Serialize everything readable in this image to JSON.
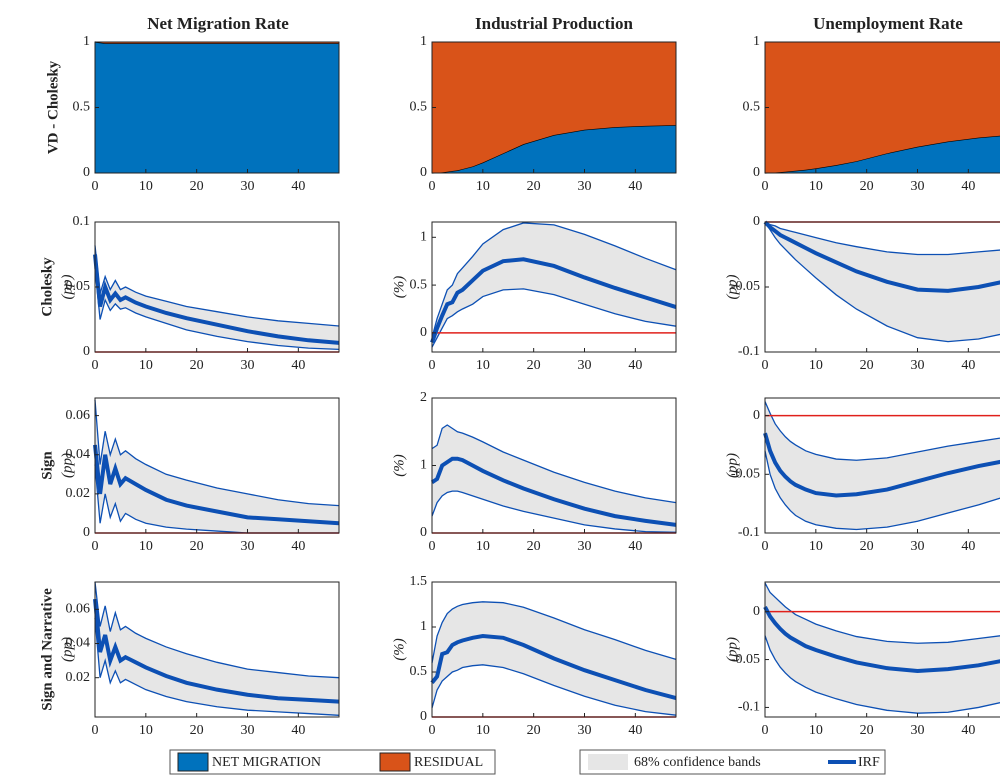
{
  "column_titles": [
    "Net Migration Rate",
    "Industrial Production",
    "Unemployment Rate"
  ],
  "row_labels": [
    {
      "title": "VD - Cholesky"
    },
    {
      "title": "Cholesky",
      "unit": "(pp)"
    },
    {
      "title": "Sign",
      "unit": "(pp)"
    },
    {
      "title": "Sign and Narrative",
      "unit": "(pp)"
    }
  ],
  "legend_vd": [
    {
      "name": "NET MIGRATION",
      "color": "#0072bd"
    },
    {
      "name": "RESIDUAL",
      "color": "#d95319"
    }
  ],
  "legend_irf": [
    {
      "name": "68% confidence bands",
      "color": "#e6e6e6"
    },
    {
      "name": "IRF",
      "color": "#0d50b4"
    }
  ],
  "chart_data": [
    {
      "type": "stacked_area",
      "x": [
        0,
        1,
        2,
        3,
        4,
        5,
        6,
        8,
        10,
        14,
        18,
        24,
        30,
        36,
        42,
        48
      ],
      "xlim": [
        0,
        48
      ],
      "xticks": [
        0,
        10,
        20,
        30,
        40
      ],
      "ylim": [
        0,
        1
      ],
      "yticks": [
        0,
        0.5,
        1
      ],
      "series": [
        {
          "color": "#0072bd",
          "values": [
            1,
            0.995,
            0.99,
            0.99,
            0.99,
            0.99,
            0.99,
            0.99,
            0.99,
            0.99,
            0.99,
            0.99,
            0.99,
            0.99,
            0.99,
            0.99
          ]
        },
        {
          "color": "#d95319",
          "values": [
            0,
            0.005,
            0.01,
            0.01,
            0.01,
            0.01,
            0.01,
            0.01,
            0.01,
            0.01,
            0.01,
            0.01,
            0.01,
            0.01,
            0.01,
            0.01
          ]
        }
      ]
    },
    {
      "type": "stacked_area",
      "x": [
        0,
        1,
        2,
        3,
        4,
        5,
        6,
        8,
        10,
        14,
        18,
        24,
        30,
        36,
        42,
        48
      ],
      "xlim": [
        0,
        48
      ],
      "xticks": [
        0,
        10,
        20,
        30,
        40
      ],
      "ylim": [
        0,
        1
      ],
      "yticks": [
        0,
        0.5,
        1
      ],
      "series": [
        {
          "color": "#0072bd",
          "values": [
            0,
            0.002,
            0.005,
            0.01,
            0.015,
            0.02,
            0.03,
            0.05,
            0.08,
            0.15,
            0.22,
            0.29,
            0.33,
            0.35,
            0.36,
            0.365
          ]
        },
        {
          "color": "#d95319",
          "values": [
            1,
            0.998,
            0.995,
            0.99,
            0.985,
            0.98,
            0.97,
            0.95,
            0.92,
            0.85,
            0.78,
            0.71,
            0.67,
            0.65,
            0.64,
            0.635
          ]
        }
      ]
    },
    {
      "type": "stacked_area",
      "x": [
        0,
        1,
        2,
        3,
        4,
        5,
        6,
        8,
        10,
        14,
        18,
        24,
        30,
        36,
        42,
        48
      ],
      "xlim": [
        0,
        48
      ],
      "xticks": [
        0,
        10,
        20,
        30,
        40
      ],
      "ylim": [
        0,
        1
      ],
      "yticks": [
        0,
        0.5,
        1
      ],
      "series": [
        {
          "color": "#0072bd",
          "values": [
            0,
            0.002,
            0.004,
            0.007,
            0.01,
            0.013,
            0.017,
            0.025,
            0.035,
            0.06,
            0.09,
            0.15,
            0.2,
            0.24,
            0.27,
            0.29
          ]
        },
        {
          "color": "#d95319",
          "values": [
            1,
            0.998,
            0.996,
            0.993,
            0.99,
            0.987,
            0.983,
            0.975,
            0.965,
            0.94,
            0.91,
            0.85,
            0.8,
            0.76,
            0.73,
            0.71
          ]
        }
      ]
    },
    {
      "type": "irf",
      "x": [
        0,
        1,
        2,
        3,
        4,
        5,
        6,
        8,
        10,
        14,
        18,
        24,
        30,
        36,
        42,
        48
      ],
      "xlim": [
        0,
        48
      ],
      "xticks": [
        0,
        10,
        20,
        30,
        40
      ],
      "ylim": [
        0,
        0.1
      ],
      "yticks": [
        0,
        0.05,
        0.1
      ],
      "band": {
        "color": "#e6e6e6",
        "lower": [
          0.065,
          0.025,
          0.04,
          0.032,
          0.037,
          0.033,
          0.034,
          0.03,
          0.027,
          0.022,
          0.017,
          0.012,
          0.008,
          0.005,
          0.003,
          0.002
        ],
        "upper": [
          0.082,
          0.045,
          0.058,
          0.048,
          0.055,
          0.048,
          0.05,
          0.046,
          0.043,
          0.039,
          0.035,
          0.031,
          0.027,
          0.024,
          0.022,
          0.02
        ]
      },
      "irf": {
        "color": "#0d50b4",
        "values": [
          0.075,
          0.035,
          0.05,
          0.04,
          0.045,
          0.04,
          0.042,
          0.038,
          0.035,
          0.03,
          0.026,
          0.021,
          0.016,
          0.012,
          0.009,
          0.007
        ]
      },
      "ref_line": {
        "value": 0,
        "color": "#e0201b"
      }
    },
    {
      "type": "irf",
      "ylabel": "(%)",
      "x": [
        0,
        1,
        2,
        3,
        4,
        5,
        6,
        8,
        10,
        14,
        18,
        24,
        30,
        36,
        42,
        48
      ],
      "xlim": [
        0,
        48
      ],
      "xticks": [
        0,
        10,
        20,
        30,
        40
      ],
      "ylim": [
        -0.2,
        1.16
      ],
      "yticks": [
        0,
        0.5,
        1
      ],
      "band": {
        "color": "#e6e6e6",
        "lower": [
          -0.15,
          -0.05,
          0.05,
          0.15,
          0.18,
          0.22,
          0.25,
          0.3,
          0.38,
          0.45,
          0.46,
          0.4,
          0.3,
          0.2,
          0.12,
          0.07
        ],
        "upper": [
          -0.05,
          0.15,
          0.3,
          0.45,
          0.5,
          0.62,
          0.68,
          0.8,
          0.93,
          1.08,
          1.15,
          1.13,
          1.03,
          0.91,
          0.78,
          0.66
        ]
      },
      "irf": {
        "color": "#0d50b4",
        "values": [
          -0.1,
          0.05,
          0.18,
          0.3,
          0.32,
          0.42,
          0.45,
          0.55,
          0.65,
          0.75,
          0.77,
          0.7,
          0.58,
          0.47,
          0.37,
          0.27
        ]
      },
      "ref_line": {
        "value": 0,
        "color": "#e0201b"
      }
    },
    {
      "type": "irf",
      "ylabel": "(pp)",
      "x": [
        0,
        1,
        2,
        3,
        4,
        5,
        6,
        8,
        10,
        14,
        18,
        24,
        30,
        36,
        42,
        48
      ],
      "xlim": [
        0,
        48
      ],
      "xticks": [
        0,
        10,
        20,
        30,
        40
      ],
      "ylim": [
        -0.1,
        0
      ],
      "yticks": [
        -0.1,
        -0.05,
        0
      ],
      "band": {
        "color": "#e6e6e6",
        "lower": [
          0,
          -0.006,
          -0.012,
          -0.017,
          -0.021,
          -0.025,
          -0.029,
          -0.036,
          -0.043,
          -0.056,
          -0.067,
          -0.08,
          -0.089,
          -0.092,
          -0.09,
          -0.085
        ],
        "upper": [
          0,
          -0.002,
          -0.003,
          -0.005,
          -0.006,
          -0.007,
          -0.008,
          -0.01,
          -0.012,
          -0.016,
          -0.019,
          -0.023,
          -0.025,
          -0.025,
          -0.023,
          -0.021
        ]
      },
      "irf": {
        "color": "#0d50b4",
        "values": [
          0,
          -0.004,
          -0.007,
          -0.01,
          -0.012,
          -0.014,
          -0.016,
          -0.02,
          -0.024,
          -0.031,
          -0.038,
          -0.046,
          -0.052,
          -0.053,
          -0.05,
          -0.045
        ]
      },
      "ref_line": {
        "value": 0,
        "color": "#e0201b"
      }
    },
    {
      "type": "irf",
      "x": [
        0,
        1,
        2,
        3,
        4,
        5,
        6,
        8,
        10,
        14,
        18,
        24,
        30,
        36,
        42,
        48
      ],
      "xlim": [
        0,
        48
      ],
      "xticks": [
        0,
        10,
        20,
        30,
        40
      ],
      "ylim": [
        0,
        0.069
      ],
      "yticks": [
        0,
        0.02,
        0.04,
        0.06
      ],
      "band": {
        "color": "#e6e6e6",
        "lower": [
          0.035,
          0.005,
          0.02,
          0.008,
          0.015,
          0.006,
          0.01,
          0.007,
          0.005,
          0.003,
          0.002,
          0.001,
          0,
          0,
          0,
          0
        ],
        "upper": [
          0.068,
          0.035,
          0.052,
          0.04,
          0.048,
          0.04,
          0.042,
          0.038,
          0.035,
          0.03,
          0.027,
          0.023,
          0.02,
          0.017,
          0.015,
          0.014
        ]
      },
      "irf": {
        "color": "#0d50b4",
        "values": [
          0.045,
          0.02,
          0.04,
          0.025,
          0.033,
          0.025,
          0.028,
          0.025,
          0.022,
          0.017,
          0.014,
          0.011,
          0.008,
          0.007,
          0.006,
          0.005
        ]
      },
      "ref_line": {
        "value": 0,
        "color": "#e0201b"
      }
    },
    {
      "type": "irf",
      "ylabel": "(%)",
      "x": [
        0,
        1,
        2,
        3,
        4,
        5,
        6,
        8,
        10,
        14,
        18,
        24,
        30,
        36,
        42,
        48
      ],
      "xlim": [
        0,
        48
      ],
      "xticks": [
        0,
        10,
        20,
        30,
        40
      ],
      "ylim": [
        0,
        2
      ],
      "yticks": [
        0,
        1,
        2
      ],
      "band": {
        "color": "#e6e6e6",
        "lower": [
          0.25,
          0.45,
          0.55,
          0.6,
          0.62,
          0.62,
          0.6,
          0.55,
          0.5,
          0.4,
          0.32,
          0.22,
          0.12,
          0.06,
          0.02,
          0.01
        ],
        "upper": [
          1.25,
          1.3,
          1.55,
          1.6,
          1.55,
          1.5,
          1.48,
          1.42,
          1.35,
          1.2,
          1.08,
          0.9,
          0.75,
          0.62,
          0.52,
          0.45
        ]
      },
      "irf": {
        "color": "#0d50b4",
        "values": [
          0.75,
          0.8,
          1,
          1.05,
          1.1,
          1.1,
          1.08,
          1,
          0.92,
          0.78,
          0.66,
          0.5,
          0.36,
          0.25,
          0.18,
          0.12
        ]
      },
      "ref_line": {
        "value": 0,
        "color": "#e0201b"
      }
    },
    {
      "type": "irf",
      "ylabel": "(pp)",
      "x": [
        0,
        1,
        2,
        3,
        4,
        5,
        6,
        8,
        10,
        14,
        18,
        24,
        30,
        36,
        42,
        48
      ],
      "xlim": [
        0,
        48
      ],
      "xticks": [
        0,
        10,
        20,
        30,
        40
      ],
      "ylim": [
        -0.1,
        0.015
      ],
      "yticks": [
        -0.1,
        -0.05,
        0
      ],
      "band": {
        "color": "#e6e6e6",
        "lower": [
          -0.03,
          -0.05,
          -0.062,
          -0.07,
          -0.076,
          -0.081,
          -0.085,
          -0.09,
          -0.093,
          -0.096,
          -0.097,
          -0.095,
          -0.09,
          -0.083,
          -0.076,
          -0.068
        ],
        "upper": [
          0.012,
          0.002,
          -0.007,
          -0.013,
          -0.018,
          -0.022,
          -0.025,
          -0.03,
          -0.033,
          -0.037,
          -0.038,
          -0.036,
          -0.031,
          -0.026,
          -0.022,
          -0.018
        ]
      },
      "irf": {
        "color": "#0d50b4",
        "values": [
          -0.015,
          -0.03,
          -0.04,
          -0.047,
          -0.052,
          -0.056,
          -0.059,
          -0.063,
          -0.066,
          -0.068,
          -0.067,
          -0.063,
          -0.056,
          -0.049,
          -0.043,
          -0.038
        ]
      },
      "ref_line": {
        "value": 0,
        "color": "#e0201b"
      }
    },
    {
      "type": "irf",
      "x": [
        0,
        1,
        2,
        3,
        4,
        5,
        6,
        8,
        10,
        14,
        18,
        24,
        30,
        36,
        42,
        48
      ],
      "xlim": [
        0,
        48
      ],
      "xticks": [
        0,
        10,
        20,
        30,
        40
      ],
      "ylim": [
        -0.003,
        0.076
      ],
      "yticks": [
        0.02,
        0.04,
        0.06
      ],
      "band": {
        "color": "#e6e6e6",
        "lower": [
          0.055,
          0.02,
          0.03,
          0.017,
          0.024,
          0.017,
          0.019,
          0.016,
          0.013,
          0.009,
          0.006,
          0.003,
          0.001,
          0,
          -0.001,
          -0.002
        ],
        "upper": [
          0.076,
          0.05,
          0.062,
          0.047,
          0.058,
          0.048,
          0.05,
          0.046,
          0.043,
          0.038,
          0.034,
          0.029,
          0.025,
          0.023,
          0.021,
          0.02
        ]
      },
      "irf": {
        "color": "#0d50b4",
        "values": [
          0.066,
          0.035,
          0.045,
          0.03,
          0.038,
          0.03,
          0.032,
          0.029,
          0.026,
          0.021,
          0.017,
          0.013,
          0.01,
          0.008,
          0.007,
          0.006
        ]
      }
    },
    {
      "type": "irf",
      "ylabel": "(%)",
      "x": [
        0,
        1,
        2,
        3,
        4,
        5,
        6,
        8,
        10,
        14,
        18,
        24,
        30,
        36,
        42,
        48
      ],
      "xlim": [
        0,
        48
      ],
      "xticks": [
        0,
        10,
        20,
        30,
        40
      ],
      "ylim": [
        0,
        1.5
      ],
      "yticks": [
        0,
        0.5,
        1,
        1.5
      ],
      "band": {
        "color": "#e6e6e6",
        "lower": [
          0.1,
          0.3,
          0.4,
          0.45,
          0.5,
          0.52,
          0.55,
          0.57,
          0.58,
          0.55,
          0.48,
          0.35,
          0.23,
          0.13,
          0.06,
          0.02
        ],
        "upper": [
          0.6,
          0.9,
          1.05,
          1.15,
          1.2,
          1.23,
          1.25,
          1.27,
          1.28,
          1.27,
          1.22,
          1.1,
          0.97,
          0.86,
          0.74,
          0.64
        ]
      },
      "irf": {
        "color": "#0d50b4",
        "values": [
          0.38,
          0.45,
          0.7,
          0.72,
          0.8,
          0.83,
          0.85,
          0.88,
          0.9,
          0.88,
          0.8,
          0.65,
          0.52,
          0.41,
          0.3,
          0.21
        ]
      },
      "ref_line": {
        "value": 0,
        "color": "#e0201b"
      }
    },
    {
      "type": "irf",
      "ylabel": "(pp)",
      "x": [
        0,
        1,
        2,
        3,
        4,
        5,
        6,
        8,
        10,
        14,
        18,
        24,
        30,
        36,
        42,
        48
      ],
      "xlim": [
        0,
        48
      ],
      "xticks": [
        0,
        10,
        20,
        30,
        40
      ],
      "ylim": [
        -0.11,
        0.031
      ],
      "yticks": [
        -0.1,
        -0.05,
        0
      ],
      "band": {
        "color": "#e6e6e6",
        "lower": [
          -0.025,
          -0.04,
          -0.05,
          -0.058,
          -0.064,
          -0.069,
          -0.073,
          -0.079,
          -0.084,
          -0.091,
          -0.097,
          -0.103,
          -0.106,
          -0.105,
          -0.1,
          -0.093
        ],
        "upper": [
          0.03,
          0.02,
          0.015,
          0.01,
          0.005,
          0.001,
          -0.003,
          -0.008,
          -0.013,
          -0.02,
          -0.026,
          -0.031,
          -0.033,
          -0.032,
          -0.028,
          -0.024
        ]
      },
      "irf": {
        "color": "#0d50b4",
        "values": [
          0.005,
          -0.005,
          -0.012,
          -0.018,
          -0.023,
          -0.027,
          -0.03,
          -0.036,
          -0.04,
          -0.047,
          -0.053,
          -0.059,
          -0.062,
          -0.06,
          -0.056,
          -0.05
        ]
      },
      "ref_line": {
        "value": 0,
        "color": "#e0201b"
      }
    }
  ]
}
